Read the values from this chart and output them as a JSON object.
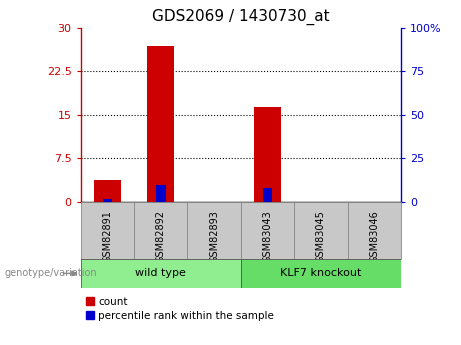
{
  "title": "GDS2069 / 1430730_at",
  "samples": [
    "GSM82891",
    "GSM82892",
    "GSM82893",
    "GSM83043",
    "GSM83045",
    "GSM83046"
  ],
  "count_values": [
    3.8,
    26.8,
    0.05,
    16.3,
    0.05,
    0.05
  ],
  "percentile_values": [
    1.4,
    9.5,
    0.0,
    8.0,
    0.0,
    0.0
  ],
  "groups": [
    {
      "label": "wild type",
      "indices": [
        0,
        1,
        2
      ],
      "color": "#90EE90"
    },
    {
      "label": "KLF7 knockout",
      "indices": [
        3,
        4,
        5
      ],
      "color": "#66DD66"
    }
  ],
  "group_label": "genotype/variation",
  "ylim_left": [
    0,
    30
  ],
  "ylim_right": [
    0,
    100
  ],
  "yticks_left": [
    0,
    7.5,
    15,
    22.5,
    30
  ],
  "ytick_labels_left": [
    "0",
    "7.5",
    "15",
    "22.5",
    "30"
  ],
  "yticks_right": [
    0,
    25,
    50,
    75,
    100
  ],
  "ytick_labels_right": [
    "0",
    "25",
    "50",
    "75",
    "100%"
  ],
  "bar_color": "#CC0000",
  "percentile_color": "#0000CC",
  "bar_width": 0.5,
  "percentile_bar_width": 0.18,
  "background_color": "#ffffff",
  "plot_bg_color": "#ffffff",
  "tick_label_color_left": "#CC0000",
  "tick_label_color_right": "#0000CC",
  "xtick_bg_color": "#c8c8c8",
  "legend_count_label": "count",
  "legend_percentile_label": "percentile rank within the sample"
}
